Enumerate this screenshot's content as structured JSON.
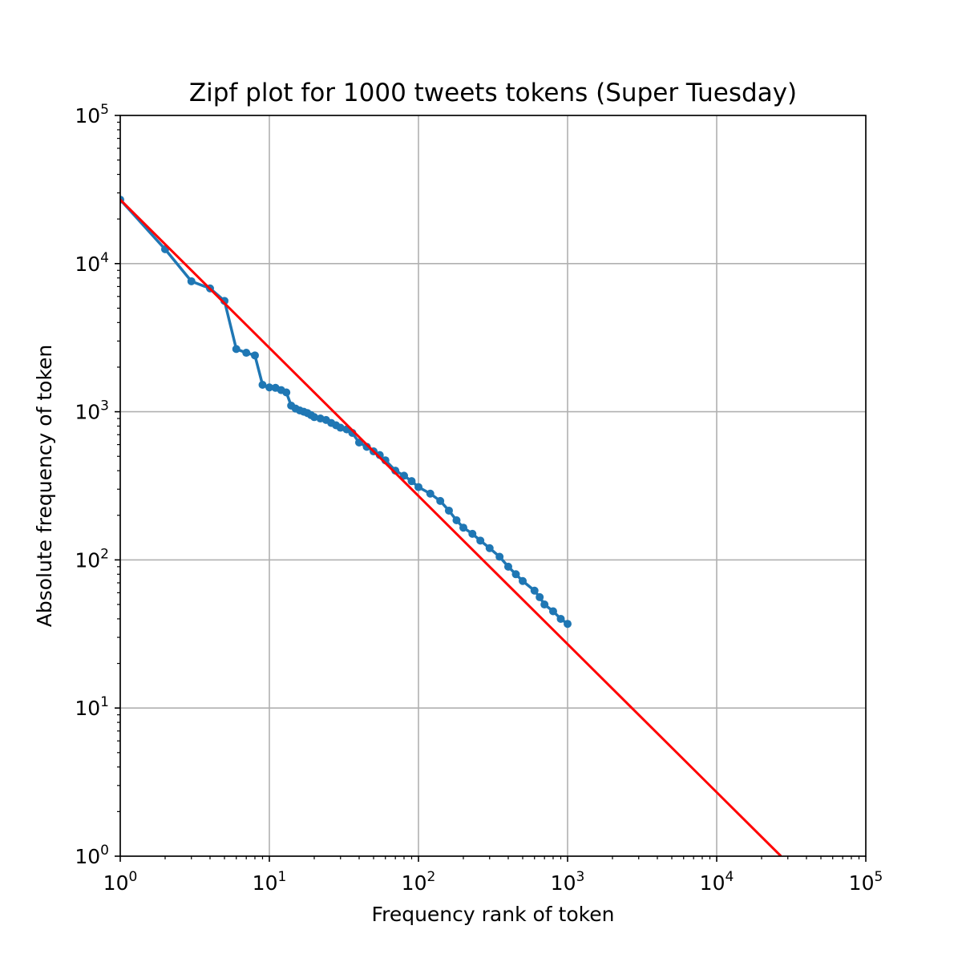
{
  "chart_data": {
    "type": "line",
    "title": "Zipf plot for 1000 tweets tokens (Super Tuesday)",
    "xlabel": "Frequency rank of token",
    "ylabel": "Absolute frequency of token",
    "xscale": "log",
    "yscale": "log",
    "xlim": [
      1,
      100000
    ],
    "ylim": [
      1,
      100000
    ],
    "grid": true,
    "x_tick_labels": [
      {
        "base": "10",
        "exp": "0"
      },
      {
        "base": "10",
        "exp": "1"
      },
      {
        "base": "10",
        "exp": "2"
      },
      {
        "base": "10",
        "exp": "3"
      },
      {
        "base": "10",
        "exp": "4"
      },
      {
        "base": "10",
        "exp": "5"
      }
    ],
    "y_tick_labels": [
      {
        "base": "10",
        "exp": "0"
      },
      {
        "base": "10",
        "exp": "1"
      },
      {
        "base": "10",
        "exp": "2"
      },
      {
        "base": "10",
        "exp": "3"
      },
      {
        "base": "10",
        "exp": "4"
      },
      {
        "base": "10",
        "exp": "5"
      }
    ],
    "series": [
      {
        "color": "#1f77b4",
        "style": "line-with-markers",
        "x": [
          1,
          2,
          3,
          4,
          5,
          6,
          7,
          8,
          9,
          10,
          11,
          12,
          13,
          14,
          15,
          16,
          17,
          18,
          19,
          20,
          22,
          24,
          26,
          28,
          30,
          33,
          36,
          40,
          45,
          50,
          55,
          60,
          70,
          80,
          90,
          100,
          120,
          140,
          160,
          180,
          200,
          230,
          260,
          300,
          350,
          400,
          450,
          500,
          600,
          650,
          700,
          800,
          900,
          1000
        ],
        "y": [
          27000,
          12500,
          7600,
          6800,
          5600,
          2650,
          2500,
          2400,
          1520,
          1460,
          1450,
          1400,
          1350,
          1100,
          1050,
          1020,
          1000,
          980,
          950,
          920,
          900,
          880,
          840,
          810,
          780,
          760,
          720,
          620,
          580,
          540,
          510,
          470,
          400,
          370,
          340,
          310,
          280,
          250,
          215,
          185,
          165,
          150,
          135,
          120,
          105,
          90,
          80,
          72,
          62,
          56,
          50,
          45,
          40,
          37
        ]
      },
      {
        "color": "#ff0000",
        "style": "line",
        "x": [
          1,
          27000
        ],
        "y": [
          27000,
          1
        ]
      }
    ]
  }
}
